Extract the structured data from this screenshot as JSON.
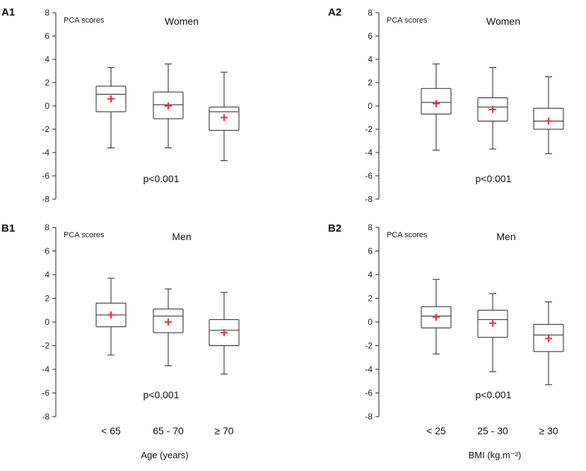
{
  "colors": {
    "axis": "#222222",
    "box": "#222222",
    "mean_marker": "#e8323c",
    "text": "#111111"
  },
  "chart_data": [
    {
      "type": "box",
      "panel_label": "A1",
      "title": "Women",
      "ylabel": "PCA scores",
      "xlabel": "",
      "categories": [
        "< 65",
        "65 - 70",
        "≥ 70"
      ],
      "show_categories": false,
      "ylim": [
        -8,
        8
      ],
      "yticks": [
        8,
        6,
        4,
        2,
        0,
        -2,
        -4,
        -6,
        -8
      ],
      "annotation": "p<0.001",
      "boxes": [
        {
          "category": "< 65",
          "whisker_low": -3.6,
          "q1": -0.5,
          "median": 1.0,
          "q3": 1.7,
          "whisker_high": 3.3,
          "mean": 0.6
        },
        {
          "category": "65 - 70",
          "whisker_low": -3.6,
          "q1": -1.1,
          "median": 0.1,
          "q3": 1.2,
          "whisker_high": 3.6,
          "mean": 0.0
        },
        {
          "category": "≥ 70",
          "whisker_low": -4.7,
          "q1": -2.1,
          "median": -0.5,
          "q3": -0.1,
          "whisker_high": 2.9,
          "mean": -1.0
        }
      ]
    },
    {
      "type": "box",
      "panel_label": "A2",
      "title": "Women",
      "ylabel": "PCA scores",
      "xlabel": "",
      "categories": [
        "< 25",
        "25 - 30",
        "≥ 30"
      ],
      "show_categories": false,
      "ylim": [
        -8,
        8
      ],
      "yticks": [
        8,
        6,
        4,
        2,
        0,
        -2,
        -4,
        -6,
        -8
      ],
      "annotation": "p<0.001",
      "boxes": [
        {
          "category": "< 25",
          "whisker_low": -3.8,
          "q1": -0.7,
          "median": 0.3,
          "q3": 1.5,
          "whisker_high": 3.6,
          "mean": 0.2
        },
        {
          "category": "25 - 30",
          "whisker_low": -3.7,
          "q1": -1.3,
          "median": -0.1,
          "q3": 0.7,
          "whisker_high": 3.3,
          "mean": -0.3
        },
        {
          "category": "≥ 30",
          "whisker_low": -4.1,
          "q1": -2.0,
          "median": -1.3,
          "q3": -0.2,
          "whisker_high": 2.5,
          "mean": -1.3
        }
      ]
    },
    {
      "type": "box",
      "panel_label": "B1",
      "title": "Men",
      "ylabel": "PCA scores",
      "xlabel": "Age (years)",
      "categories": [
        "< 65",
        "65 - 70",
        "≥ 70"
      ],
      "show_categories": true,
      "ylim": [
        -8,
        8
      ],
      "yticks": [
        8,
        6,
        4,
        2,
        0,
        -2,
        -4,
        -6,
        -8
      ],
      "annotation": "p<0.001",
      "boxes": [
        {
          "category": "< 65",
          "whisker_low": -2.8,
          "q1": -0.4,
          "median": 0.6,
          "q3": 1.6,
          "whisker_high": 3.7,
          "mean": 0.6
        },
        {
          "category": "65 - 70",
          "whisker_low": -3.7,
          "q1": -0.9,
          "median": 0.5,
          "q3": 1.1,
          "whisker_high": 2.8,
          "mean": 0.0
        },
        {
          "category": "≥ 70",
          "whisker_low": -4.4,
          "q1": -2.0,
          "median": -0.7,
          "q3": 0.2,
          "whisker_high": 2.5,
          "mean": -0.9
        }
      ]
    },
    {
      "type": "box",
      "panel_label": "B2",
      "title": "Men",
      "ylabel": "PCA scores",
      "xlabel": "BMI (kg.m⁻²)",
      "categories": [
        "< 25",
        "25 - 30",
        "≥ 30"
      ],
      "show_categories": true,
      "ylim": [
        -8,
        8
      ],
      "yticks": [
        8,
        6,
        4,
        2,
        0,
        -2,
        -4,
        -6,
        -8
      ],
      "annotation": "p<0.001",
      "boxes": [
        {
          "category": "< 25",
          "whisker_low": -2.7,
          "q1": -0.5,
          "median": 0.5,
          "q3": 1.3,
          "whisker_high": 3.6,
          "mean": 0.4
        },
        {
          "category": "25 - 30",
          "whisker_low": -4.2,
          "q1": -1.3,
          "median": 0.2,
          "q3": 1.0,
          "whisker_high": 2.4,
          "mean": -0.1
        },
        {
          "category": "≥ 30",
          "whisker_low": -5.3,
          "q1": -2.5,
          "median": -1.1,
          "q3": -0.2,
          "whisker_high": 1.7,
          "mean": -1.4
        }
      ]
    }
  ]
}
